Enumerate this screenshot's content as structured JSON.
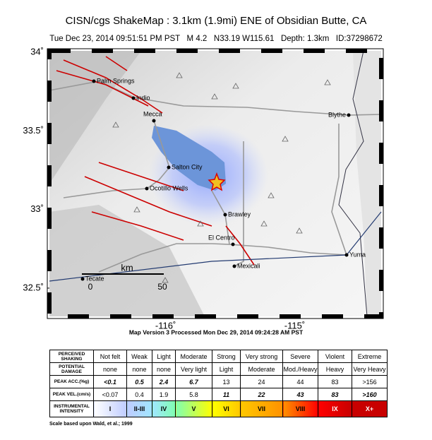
{
  "title": "CISN/cgs ShakeMap : 3.1km (1.9mi) ENE of Obsidian Butte, CA",
  "subtitle": "Tue Dec 23, 2014 09:51:51 PM PST   M 4.2   N33.19 W115.61   Depth: 1.3km   ID:37298672",
  "map": {
    "xlim": [
      -116.9,
      -114.33
    ],
    "ylim": [
      32.32,
      34.01
    ],
    "xticks": [
      {
        "value": -116,
        "label": "-116˚"
      },
      {
        "value": -115,
        "label": "-115˚"
      }
    ],
    "yticks": [
      {
        "value": 34,
        "label": "34˚"
      },
      {
        "value": 33.5,
        "label": "33.5˚"
      },
      {
        "value": 33,
        "label": "33˚"
      },
      {
        "value": 32.5,
        "label": "32.5˚"
      }
    ],
    "cities": [
      "Palm Springs",
      "Indio",
      "Mecca",
      "Salton City",
      "Ocotillo Wells",
      "Brawley",
      "El Centro",
      "Mexicali",
      "Tecate",
      "Blythe",
      "Yuma"
    ],
    "scale_unit": "km",
    "scale_ticks": [
      "0",
      "50"
    ]
  },
  "version_note": "Map Version 3 Processed Mon Dec 29, 2014 09:24:28 AM PST",
  "table": {
    "rows": [
      [
        "PERCEIVED SHAKING",
        "Not felt",
        "Weak",
        "Light",
        "Moderate",
        "Strong",
        "Very strong",
        "Severe",
        "Violent",
        "Extreme"
      ],
      [
        "POTENTIAL DAMAGE",
        "none",
        "none",
        "none",
        "Very light",
        "Light",
        "Moderate",
        "Mod./Heavy",
        "Heavy",
        "Very Heavy"
      ],
      [
        "PEAK ACC.(%g)",
        "<0.1",
        "0.5",
        "2.4",
        "6.7",
        "13",
        "24",
        "44",
        "83",
        ">156"
      ],
      [
        "PEAK VEL.(cm/s)",
        "<0.07",
        "0.4",
        "1.9",
        "5.8",
        "11",
        "22",
        "43",
        "83",
        ">160"
      ],
      [
        "INSTRUMENTAL INTENSITY",
        "I",
        "II-III",
        "IV",
        "V",
        "VI",
        "VII",
        "VIII",
        "IX",
        "X+"
      ]
    ],
    "intensity_colors": [
      "#ffffff",
      "#bfccff",
      "#a0e6ff",
      "#80ffb0",
      "#ffff00",
      "#ffc800",
      "#ff9100",
      "#ff0000",
      "#c80000"
    ]
  },
  "footnote": "Scale based upon Wald, et al.; 1999"
}
